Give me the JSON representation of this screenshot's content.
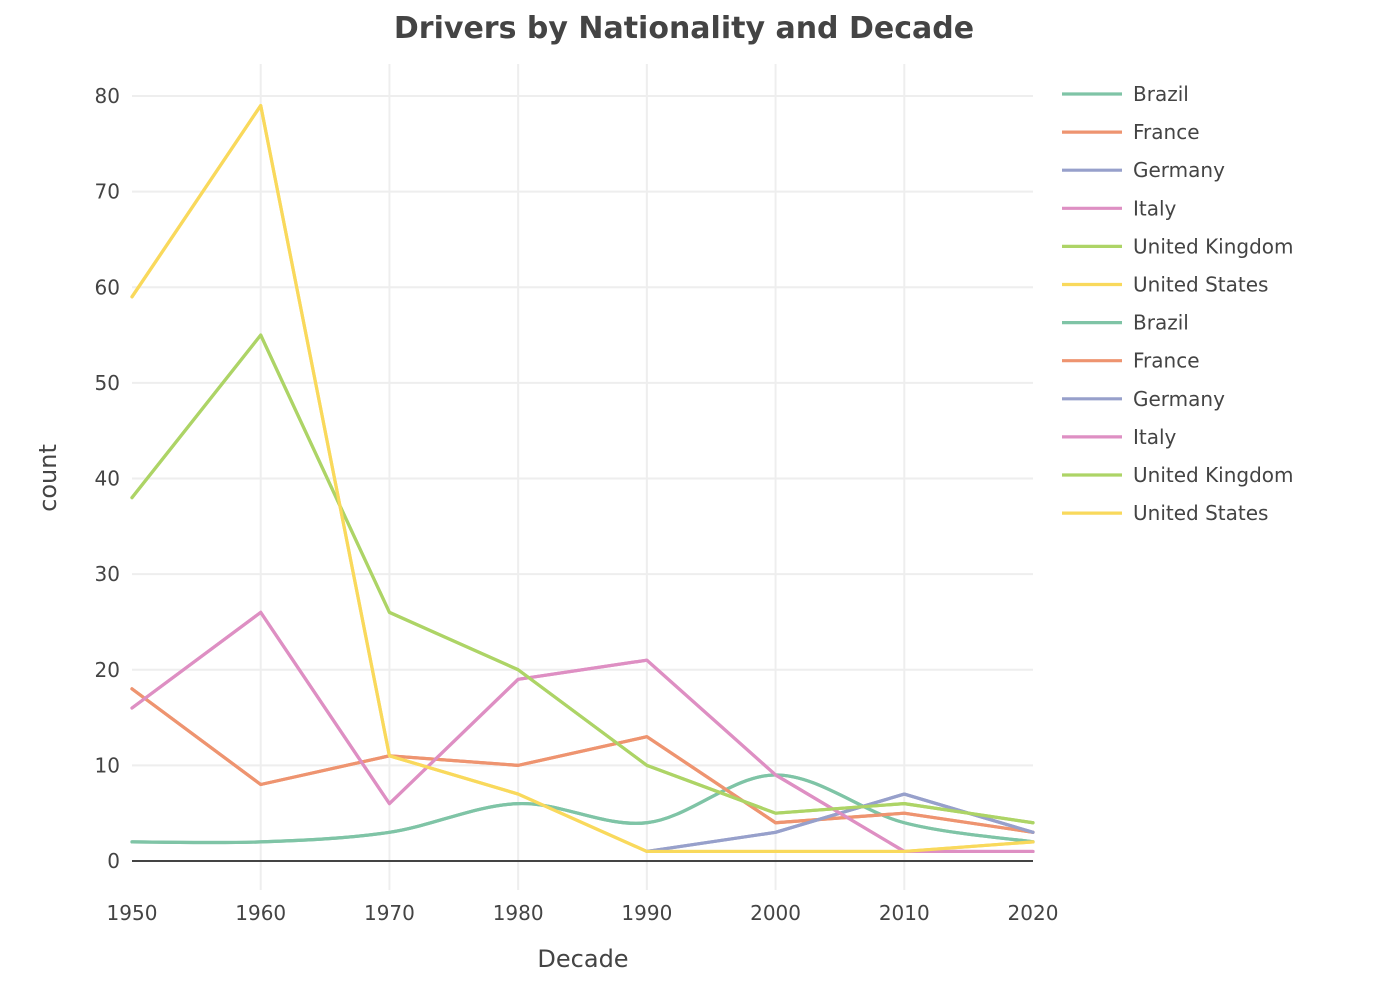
{
  "chart_data": {
    "type": "line",
    "title": "Drivers by Nationality and Decade",
    "xlabel": "Decade",
    "ylabel": "count",
    "x": [
      1950,
      1960,
      1970,
      1980,
      1990,
      2000,
      2010,
      2020
    ],
    "xlim": [
      1950,
      2020
    ],
    "ylim": [
      -2.8,
      83.5
    ],
    "xticks": [
      1950,
      1960,
      1970,
      1980,
      1990,
      2000,
      2010,
      2020
    ],
    "yticks": [
      0,
      10,
      20,
      30,
      40,
      50,
      60,
      70,
      80
    ],
    "grid": true,
    "legend_position": "right",
    "series": [
      {
        "name": "Brazil",
        "color": "#7fc4a6",
        "shape": "spline",
        "x": [
          1950,
          1960,
          1970,
          1980,
          1990,
          2000,
          2010,
          2020
        ],
        "values": [
          2,
          2,
          3,
          6,
          4,
          9,
          4,
          2
        ]
      },
      {
        "name": "France",
        "color": "#ee9470",
        "x": [
          1950,
          1960,
          1970,
          1980,
          1990,
          2000,
          2010,
          2020
        ],
        "values": [
          18,
          8,
          11,
          10,
          13,
          4,
          5,
          3
        ]
      },
      {
        "name": "Germany",
        "color": "#97a0cb",
        "x": [
          1990,
          2000,
          2010,
          2020
        ],
        "values": [
          1,
          3,
          7,
          3
        ]
      },
      {
        "name": "Italy",
        "color": "#de8fc3",
        "x": [
          1950,
          1960,
          1970,
          1980,
          1990,
          2000,
          2010,
          2020
        ],
        "values": [
          16,
          26,
          6,
          19,
          21,
          9,
          1,
          1
        ]
      },
      {
        "name": "United Kingdom",
        "color": "#add466",
        "x": [
          1950,
          1960,
          1970,
          1980,
          1990,
          2000,
          2010,
          2020
        ],
        "values": [
          38,
          55,
          26,
          20,
          10,
          5,
          6,
          4
        ]
      },
      {
        "name": "United States",
        "color": "#f9d95c",
        "x": [
          1950,
          1960,
          1970,
          1980,
          1990,
          2000,
          2010,
          2020
        ],
        "values": [
          59,
          79,
          11,
          7,
          1,
          1,
          1,
          2
        ]
      }
    ],
    "legend_entries": [
      {
        "name": "Brazil",
        "color": "#7fc4a6"
      },
      {
        "name": "France",
        "color": "#ee9470"
      },
      {
        "name": "Germany",
        "color": "#97a0cb"
      },
      {
        "name": "Italy",
        "color": "#de8fc3"
      },
      {
        "name": "United Kingdom",
        "color": "#add466"
      },
      {
        "name": "United States",
        "color": "#f9d95c"
      },
      {
        "name": "Brazil",
        "color": "#7fc4a6"
      },
      {
        "name": "France",
        "color": "#ee9470"
      },
      {
        "name": "Germany",
        "color": "#97a0cb"
      },
      {
        "name": "Italy",
        "color": "#de8fc3"
      },
      {
        "name": "United Kingdom",
        "color": "#add466"
      },
      {
        "name": "United States",
        "color": "#f9d95c"
      }
    ]
  }
}
